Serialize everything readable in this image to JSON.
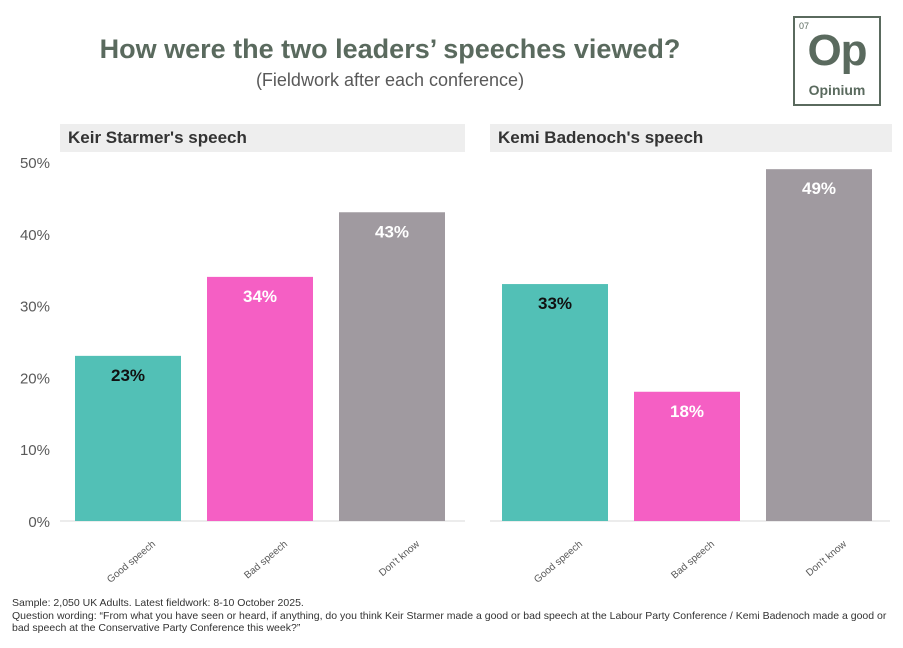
{
  "header": {
    "title": "How were the two leaders’ speeches viewed?",
    "subtitle": "(Fieldwork after each conference)"
  },
  "logo": {
    "number": "07",
    "symbol": "Op",
    "name": "Opinium"
  },
  "colors": {
    "good": "#52c0b6",
    "bad": "#f55fc4",
    "dont_know": "#a09aa0",
    "title": "#5a6a5e"
  },
  "chart_data": [
    {
      "type": "bar",
      "panel_title": "Keir Starmer's speech",
      "categories": [
        "Good speech",
        "Bad speech",
        "Don't know"
      ],
      "values": [
        23,
        34,
        43
      ],
      "data_labels": [
        "23%",
        "34%",
        "43%"
      ],
      "ylim": [
        0,
        50
      ],
      "yticks": [
        "0%",
        "10%",
        "20%",
        "30%",
        "40%",
        "50%"
      ],
      "grid": false
    },
    {
      "type": "bar",
      "panel_title": "Kemi Badenoch's speech",
      "categories": [
        "Good speech",
        "Bad speech",
        "Don't know"
      ],
      "values": [
        33,
        18,
        49
      ],
      "data_labels": [
        "33%",
        "18%",
        "49%"
      ],
      "ylim": [
        0,
        50
      ],
      "grid": false
    }
  ],
  "footnote": {
    "sample": "Sample: 2,050 UK Adults. Latest fieldwork: 8-10 October 2025.",
    "question": "Question wording: “From what you have seen or heard, if anything, do you think Keir Starmer made a good or bad speech at the Labour Party Conference / Kemi Badenoch made a good or bad speech at the Conservative Party Conference this week?”"
  }
}
